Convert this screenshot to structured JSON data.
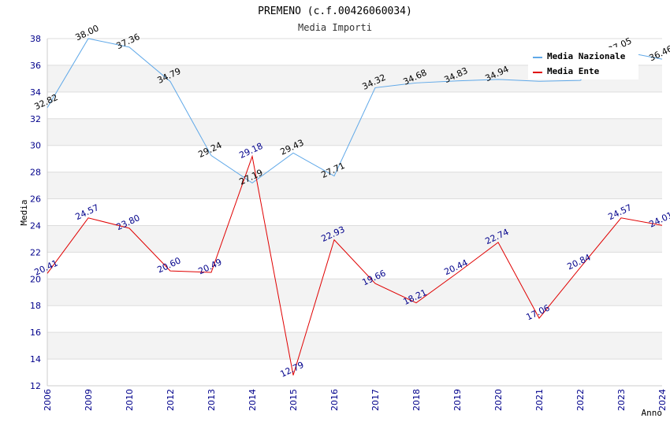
{
  "chart_data": {
    "type": "line",
    "title": "PREMENO (c.f.00426060034)",
    "subtitle": "Media Importi",
    "xlabel": "Anno",
    "ylabel": "Media",
    "categories": [
      "2006",
      "2009",
      "2010",
      "2012",
      "2013",
      "2014",
      "2015",
      "2016",
      "2017",
      "2018",
      "2019",
      "2020",
      "2021",
      "2022",
      "2023",
      "2024"
    ],
    "ylim": [
      12,
      38
    ],
    "yticks": [
      12,
      14,
      16,
      18,
      20,
      22,
      24,
      26,
      28,
      30,
      32,
      34,
      36,
      38
    ],
    "grid": "horizontal alternating bands",
    "legend_position": "top-right",
    "series": [
      {
        "name": "Media Nazionale",
        "color": "#5fa8e8",
        "label_color": "#000000",
        "values": [
          32.82,
          38.0,
          37.36,
          34.79,
          29.24,
          27.19,
          29.43,
          27.71,
          34.32,
          34.68,
          34.83,
          34.94,
          34.8,
          34.87,
          37.05,
          36.46
        ],
        "labels": [
          "32.82",
          "38.00",
          "37.36",
          "34.79",
          "29.24",
          "27.19",
          "29.43",
          "27.71",
          "34.32",
          "34.68",
          "34.83",
          "34.94",
          "",
          "",
          "37.05",
          "36.46"
        ]
      },
      {
        "name": "Media Ente",
        "color": "#e00000",
        "label_color": "#00008b",
        "values": [
          20.41,
          24.57,
          23.8,
          20.6,
          20.49,
          29.18,
          12.79,
          22.93,
          19.66,
          18.21,
          20.44,
          22.74,
          17.06,
          20.84,
          24.57,
          24.01
        ],
        "labels": [
          "20.41",
          "24.57",
          "23.80",
          "20.60",
          "20.49",
          "29.18",
          "12.79",
          "22.93",
          "19.66",
          "18.21",
          "20.44",
          "22.74",
          "17.06",
          "20.84",
          "24.57",
          "24.01"
        ]
      }
    ]
  }
}
